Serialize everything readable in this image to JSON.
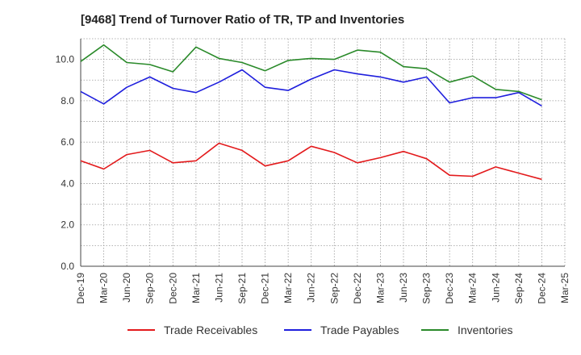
{
  "chart_data": {
    "type": "line",
    "title": "[9468]  Trend of Turnover Ratio of TR, TP and Inventories",
    "xlabel": "",
    "ylabel": "",
    "ylim": [
      0,
      11
    ],
    "yticks": [
      "0.0",
      "2.0",
      "4.0",
      "6.0",
      "8.0",
      "10.0"
    ],
    "x": [
      "Dec-19",
      "Mar-20",
      "Jun-20",
      "Sep-20",
      "Dec-20",
      "Mar-21",
      "Jun-21",
      "Sep-21",
      "Dec-21",
      "Mar-22",
      "Jun-22",
      "Sep-22",
      "Dec-22",
      "Mar-23",
      "Jun-23",
      "Sep-23",
      "Dec-23",
      "Mar-24",
      "Jun-24",
      "Sep-24",
      "Dec-24",
      "Mar-25"
    ],
    "grid": true,
    "legend_position": "bottom",
    "series": [
      {
        "name": "Trade Receivables",
        "color": "#e31a1c",
        "values": [
          5.1,
          4.7,
          5.4,
          5.6,
          5.0,
          5.1,
          5.95,
          5.6,
          4.85,
          5.1,
          5.8,
          5.5,
          5.0,
          5.25,
          5.55,
          5.2,
          4.4,
          4.35,
          4.8,
          4.5,
          4.2,
          null
        ]
      },
      {
        "name": "Trade Payables",
        "color": "#1f1fdd",
        "values": [
          8.45,
          7.85,
          8.65,
          9.15,
          8.6,
          8.4,
          8.9,
          9.5,
          8.65,
          8.5,
          9.05,
          9.5,
          9.3,
          9.15,
          8.9,
          9.15,
          7.9,
          8.15,
          8.15,
          8.4,
          7.75,
          null
        ]
      },
      {
        "name": "Inventories",
        "color": "#2a8a2a",
        "values": [
          9.9,
          10.7,
          9.85,
          9.75,
          9.4,
          10.6,
          10.05,
          9.85,
          9.45,
          9.95,
          10.05,
          10.0,
          10.45,
          10.35,
          9.65,
          9.55,
          8.9,
          9.2,
          8.55,
          8.45,
          8.05,
          null
        ]
      }
    ]
  }
}
